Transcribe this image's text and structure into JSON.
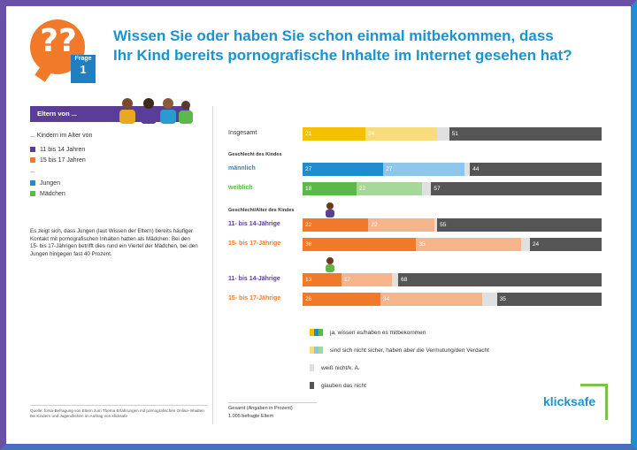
{
  "header": {
    "title_line1": "Wissen Sie oder haben Sie schon einmal mitbekommen, dass",
    "title_line2": "Ihr Kind bereits pornografische Inhalte im Internet gesehen hat?",
    "badge_icon": "question-marks-icon",
    "badge_label": "Frage",
    "badge_number": "1"
  },
  "left_panel": {
    "header": "Eltern von ...",
    "subtitle": "... Kindern im Alter von",
    "age_items": [
      {
        "label": "11 bis 14 Jahren",
        "color": "#5a3d96"
      },
      {
        "label": "15 bis 17 Jahren",
        "color": "#f07a2a"
      }
    ],
    "dots": "...",
    "gender_items": [
      {
        "label": "Jungen",
        "color": "#1f8bd0"
      },
      {
        "label": "Mädchen",
        "color": "#5db84a"
      }
    ],
    "note": "Es zeigt sich, dass Jungen (laut Wissen der Eltern) bereits häufiger Kontakt mit pornografischen Inhalten hatten als Mädchen: Bei den 15- bis 17-Jährigen betrifft dies rund ein Viertel der Mädchen, bei den Jungen hingegen fast 40 Prozent.",
    "source": "Quelle: forsa-Befragung von Eltern zum Thema Erfahrungen mit pornografischen Online-Inhalten bei Kindern und Jugendlichen im Auftrag von klicksafe"
  },
  "chart_data": {
    "type": "bar",
    "orientation": "horizontal",
    "stacked": true,
    "xlim": [
      0,
      100
    ],
    "unit": "Prozent",
    "sections": [
      {
        "label": "",
        "rows": [
          {
            "label": "Insgesamt",
            "values": [
              21,
              24,
              4,
              51
            ],
            "colors": [
              "#f5c000",
              "#f8dc7a",
              "#e0e0e0",
              "#555555"
            ],
            "label_color": "#333333"
          }
        ]
      },
      {
        "label": "Geschlecht des Kindes",
        "rows": [
          {
            "label": "männlich",
            "values": [
              27,
              27,
              2,
              44
            ],
            "colors": [
              "#1f8bd0",
              "#8ec5ea",
              "#e0e0e0",
              "#555555"
            ],
            "label_color": "#1f8bd0"
          },
          {
            "label": "weiblich",
            "values": [
              18,
              22,
              3,
              57
            ],
            "colors": [
              "#5db84a",
              "#a6d89a",
              "#e0e0e0",
              "#555555"
            ],
            "label_color": "#5db84a"
          }
        ]
      },
      {
        "label": "Geschlecht/Alter des Kindes",
        "rows": [
          {
            "label": "11- bis 14-Jährige",
            "values": [
              22,
              22,
              1,
              55
            ],
            "colors": [
              "#f07a2a",
              "#f6b48a",
              "#e0e0e0",
              "#555555"
            ],
            "label_color": "#5a3d96",
            "group_icon": "boy-icon"
          },
          {
            "label": "15- bis 17-Jährige",
            "values": [
              38,
              35,
              3,
              24
            ],
            "colors": [
              "#f07a2a",
              "#f6b48a",
              "#e0e0e0",
              "#555555"
            ],
            "label_color": "#f07a2a"
          }
        ]
      },
      {
        "label": "",
        "rows": [
          {
            "label": "11- bis 14-Jährige",
            "values": [
              13,
              17,
              2,
              68
            ],
            "colors": [
              "#f07a2a",
              "#f6b48a",
              "#e0e0e0",
              "#555555"
            ],
            "label_color": "#5a3d96",
            "group_icon": "girl-icon"
          },
          {
            "label": "15- bis 17-Jährige",
            "values": [
              26,
              34,
              5,
              35
            ],
            "colors": [
              "#f07a2a",
              "#f6b48a",
              "#e0e0e0",
              "#555555"
            ],
            "label_color": "#f07a2a"
          }
        ]
      }
    ],
    "legend": [
      {
        "label": "ja, wissen es/haben es mitbekommen",
        "colors": [
          "#f5c000",
          "#1f8bd0",
          "#5db84a"
        ]
      },
      {
        "label": "sind sich nicht sicher, haben aber die Vermutung/den Verdacht",
        "colors": [
          "#f8dc7a",
          "#8ec5ea",
          "#a6d89a"
        ]
      },
      {
        "label": "weiß nicht/k. A.",
        "colors": [
          "#e0e0e0"
        ]
      },
      {
        "label": "glauben das nicht",
        "colors": [
          "#555555"
        ]
      }
    ]
  },
  "footer": {
    "base": "Gesamt (Angaben in Prozent)",
    "sample": "1.005 befragte Eltern"
  },
  "brand": {
    "name": "klicksafe",
    "color": "#1a93cf",
    "accent": "#7cc14a"
  }
}
